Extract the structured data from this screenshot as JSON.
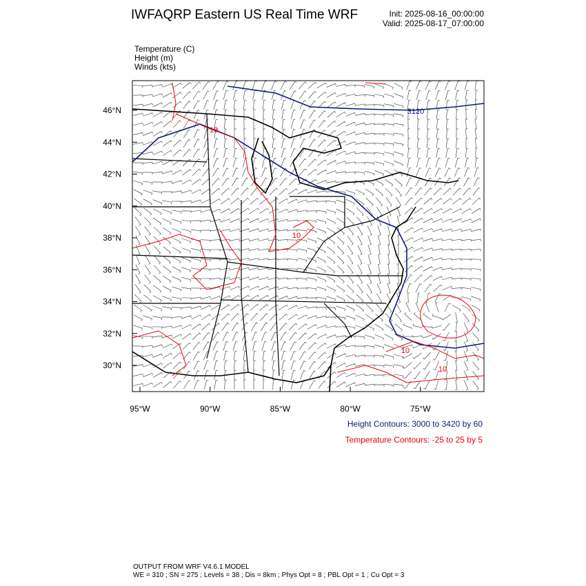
{
  "header": {
    "title": "IWFAQRP Eastern US Real Time WRF",
    "init": "Init: 2025-08-16_00:00:00",
    "valid": "Valid: 2025-08-17_07:00:00"
  },
  "fields": [
    "Temperature   (C)",
    "Height   (m)",
    "Winds   (kts)"
  ],
  "map": {
    "lon_labels": [
      "95°W",
      "90°W",
      "85°W",
      "80°W",
      "75°W"
    ],
    "lat_labels": [
      "46°N",
      "44°N",
      "42°N",
      "40°N",
      "38°N",
      "36°N",
      "34°N",
      "32°N",
      "30°N"
    ],
    "height_contour_labels": [
      "3120"
    ],
    "temperature_contour_labels": [
      "10",
      "10",
      "10",
      "10"
    ]
  },
  "legend": {
    "height": "Height Contours: 3000 to 3420 by 60",
    "temperature": "Temperature Contours: -25 to 25 by 5"
  },
  "footer": {
    "line1": "OUTPUT FROM WRF V4.6.1 MODEL",
    "line2": "WE = 310 ; SN = 275 ; Levels = 38 ; Dis = 8km ; Phys Opt = 8 ; PBL Opt = 1 ; Cu Opt = 3"
  }
}
